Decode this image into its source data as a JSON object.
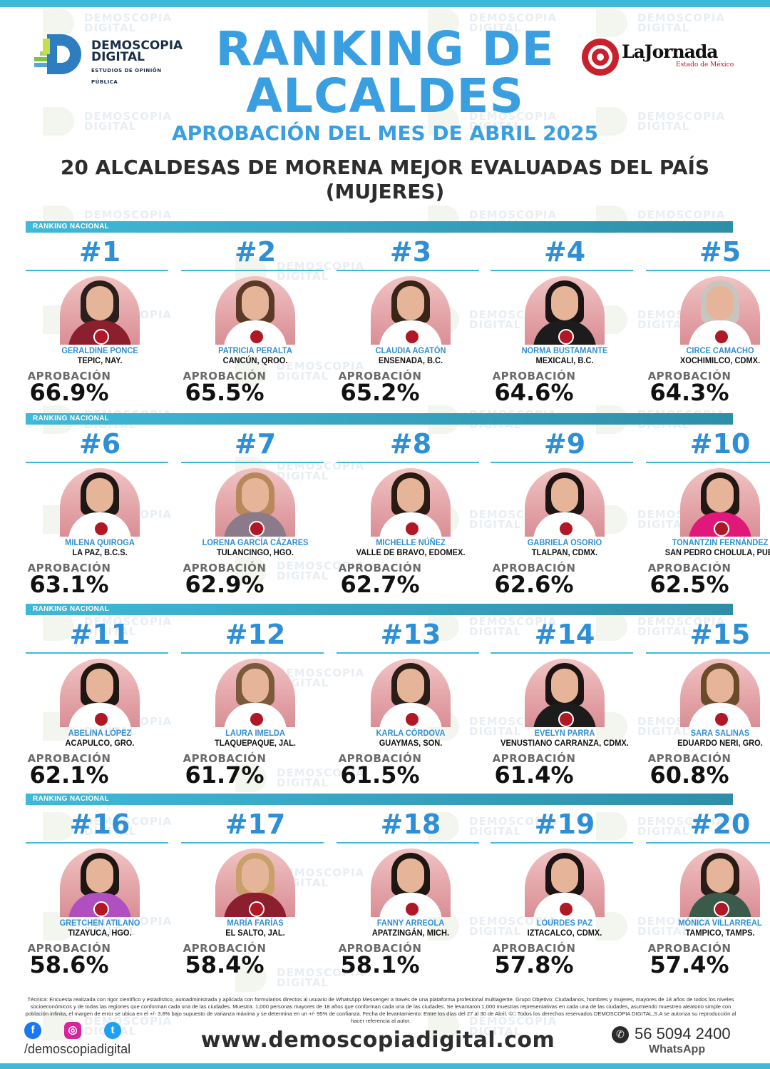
{
  "header": {
    "logo_left_line1": "DEMOSCOPIA",
    "logo_left_line2": "DIGITAL",
    "logo_left_sub": "ESTUDIOS DE OPINIÓN PÚBLICA",
    "title_line1": "RANKING DE",
    "title_line2": "ALCALDES",
    "subtitle": "APROBACIÓN DEL MES DE ABRIL 2025",
    "headline_line1": "20 ALCALDESAS DE MORENA MEJOR EVALUADAS DEL PAÍS",
    "headline_line2": "(MUJERES)",
    "logo_right_name": "LaJornada",
    "logo_right_sub": "Estado de México"
  },
  "watermark_line1": "DEMOSCOPIA",
  "watermark_line2": "DIGITAL",
  "band_label": "RANKING NACIONAL",
  "approval_label": "APROBACIÓN",
  "colors": {
    "accent": "#3a9fe0",
    "band": "#3fb9d8",
    "portrait_bg": "#e7a9ae",
    "badge": "#b01826"
  },
  "mayors": [
    {
      "rank": "#1",
      "name": "GERALDINE PONCE",
      "city": "TEPIC, NAY.",
      "approval": "66.9%"
    },
    {
      "rank": "#2",
      "name": "PATRICIA PERALTA",
      "city": "CANCÚN, QROO.",
      "approval": "65.5%"
    },
    {
      "rank": "#3",
      "name": "CLAUDIA AGATÓN",
      "city": "ENSENADA, B.C.",
      "approval": "65.2%"
    },
    {
      "rank": "#4",
      "name": "NORMA BUSTAMANTE",
      "city": "MEXICALI, B.C.",
      "approval": "64.6%"
    },
    {
      "rank": "#5",
      "name": "CIRCE CAMACHO",
      "city": "XOCHIMILCO, CDMX.",
      "approval": "64.3%"
    },
    {
      "rank": "#6",
      "name": "MILENA QUIROGA",
      "city": "LA PAZ, B.C.S.",
      "approval": "63.1%"
    },
    {
      "rank": "#7",
      "name": "LORENA GARCÍA CÁZARES",
      "city": "TULANCINGO, HGO.",
      "approval": "62.9%"
    },
    {
      "rank": "#8",
      "name": "MICHELLE NÚÑEZ",
      "city": "VALLE DE BRAVO, EDOMEX.",
      "approval": "62.7%"
    },
    {
      "rank": "#9",
      "name": "GABRIELA OSORIO",
      "city": "TLALPAN, CDMX.",
      "approval": "62.6%"
    },
    {
      "rank": "#10",
      "name": "TONANTZIN FERNÁNDEZ",
      "city": "SAN PEDRO CHOLULA, PUE.",
      "approval": "62.5%"
    },
    {
      "rank": "#11",
      "name": "ABELINA LÓPEZ",
      "city": "ACAPULCO, GRO.",
      "approval": "62.1%"
    },
    {
      "rank": "#12",
      "name": "LAURA IMELDA",
      "city": "TLAQUEPAQUE, JAL.",
      "approval": "61.7%"
    },
    {
      "rank": "#13",
      "name": "KARLA CÓRDOVA",
      "city": "GUAYMAS, SON.",
      "approval": "61.5%"
    },
    {
      "rank": "#14",
      "name": "EVELYN PARRA",
      "city": "VENUSTIANO CARRANZA, CDMX.",
      "approval": "61.4%"
    },
    {
      "rank": "#15",
      "name": "SARA SALINAS",
      "city": "EDUARDO NERI, GRO.",
      "approval": "60.8%"
    },
    {
      "rank": "#16",
      "name": "GRETCHEN ATILANO",
      "city": "TIZAYUCA, HGO.",
      "approval": "58.6%"
    },
    {
      "rank": "#17",
      "name": "MARÍA FARÍAS",
      "city": "EL SALTO, JAL.",
      "approval": "58.4%"
    },
    {
      "rank": "#18",
      "name": "FANNY ARREOLA",
      "city": "APATZINGÁN, MICH.",
      "approval": "58.1%"
    },
    {
      "rank": "#19",
      "name": "LOURDES PAZ",
      "city": "IZTACALCO, CDMX.",
      "approval": "57.8%"
    },
    {
      "rank": "#20",
      "name": "MÓNICA VILLARREAL",
      "city": "TAMPICO, TAMPS.",
      "approval": "57.4%"
    }
  ],
  "footer": {
    "methodology": "Técnica: Encuesta realizada con rigor científico y estadístico, autoadministrada y aplicada con formularios directos al usuario de WhatsApp Messenger a través de una plataforma profesional multiagente. Grupo Objetivo: Ciudadanos, hombres y mujeres, mayores de 18 años de todos los niveles socioeconómicos y de todas las regiones que conforman cada una de las ciudades. Muestra: 1,000 personas mayores de 18 años que conforman cada una de las ciudades. Se levantaron 1,000 muestras representativas en cada una de las ciudades, asumiendo muestreo aleatorio simple con población infinita, el margen de error se ubica en el +/- 3.8% bajo supuesto de varianza máxima y se determina en un +/- 95% de confianza. Fecha de levantamiento: Entre los días del 27 al 30 de Abril. ©□ Todos los derechos reservados DEMOSCOPIA DIGITAL,S.A se autoriza su reproducción al hacer referencia al autor.",
    "social_handle": "/demoscopiadigital",
    "website": "www.demoscopiadigital.com",
    "phone": "56 5094 2400",
    "whatsapp_label": "WhatsApp"
  }
}
